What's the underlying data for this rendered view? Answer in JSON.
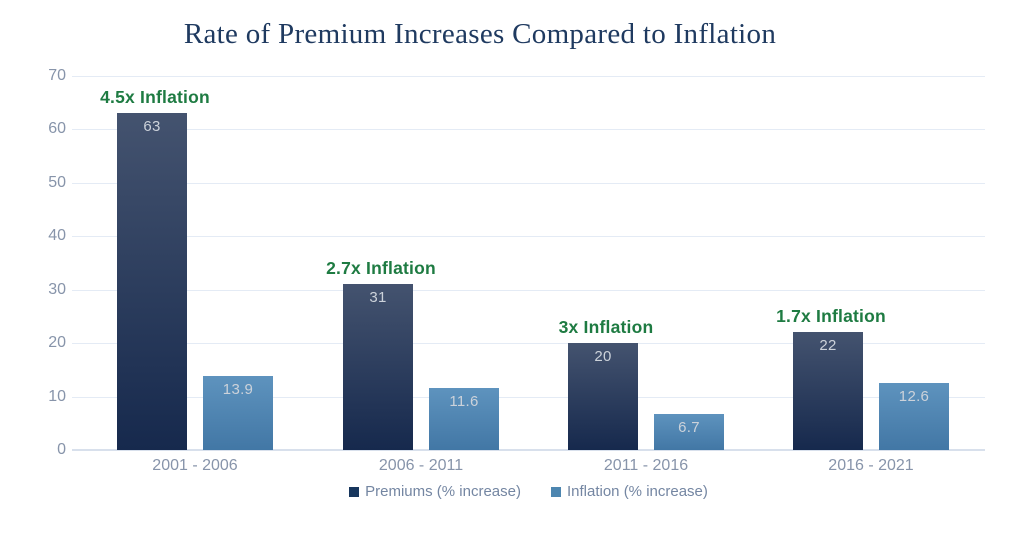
{
  "title": "Rate of Premium Increases Compared to Inflation",
  "chart_data": {
    "type": "bar",
    "categories": [
      "2001 - 2006",
      "2006 - 2011",
      "2011 - 2016",
      "2016 - 2021"
    ],
    "series": [
      {
        "name": "Premiums (% increase)",
        "values": [
          63,
          31,
          20,
          22
        ],
        "swatch": "#17365d",
        "gradient_top": "#44536f",
        "gradient_bottom": "#16294d"
      },
      {
        "name": "Inflation (% increase)",
        "values": [
          13.9,
          11.6,
          6.7,
          12.6
        ],
        "swatch": "#4d86b0",
        "gradient_top": "#5e93be",
        "gradient_bottom": "#4277a5"
      }
    ],
    "annotations": [
      "4.5x Inflation",
      "2.7x Inflation",
      "3x Inflation",
      "1.7x Inflation"
    ],
    "yticks": [
      0,
      10,
      20,
      30,
      40,
      50,
      60,
      70
    ],
    "ylim": [
      0,
      70
    ],
    "grid": true,
    "legend_position": "bottom-center",
    "bar_value_labels_shown": true
  },
  "colors": {
    "title_text": "#1f3a60",
    "annotation_green": "#1e7b42",
    "axis_label": "#8794aa",
    "legend_text": "#7486a2",
    "gridline": "#e4ebf5",
    "bar_value_text": "#ccd2da"
  }
}
